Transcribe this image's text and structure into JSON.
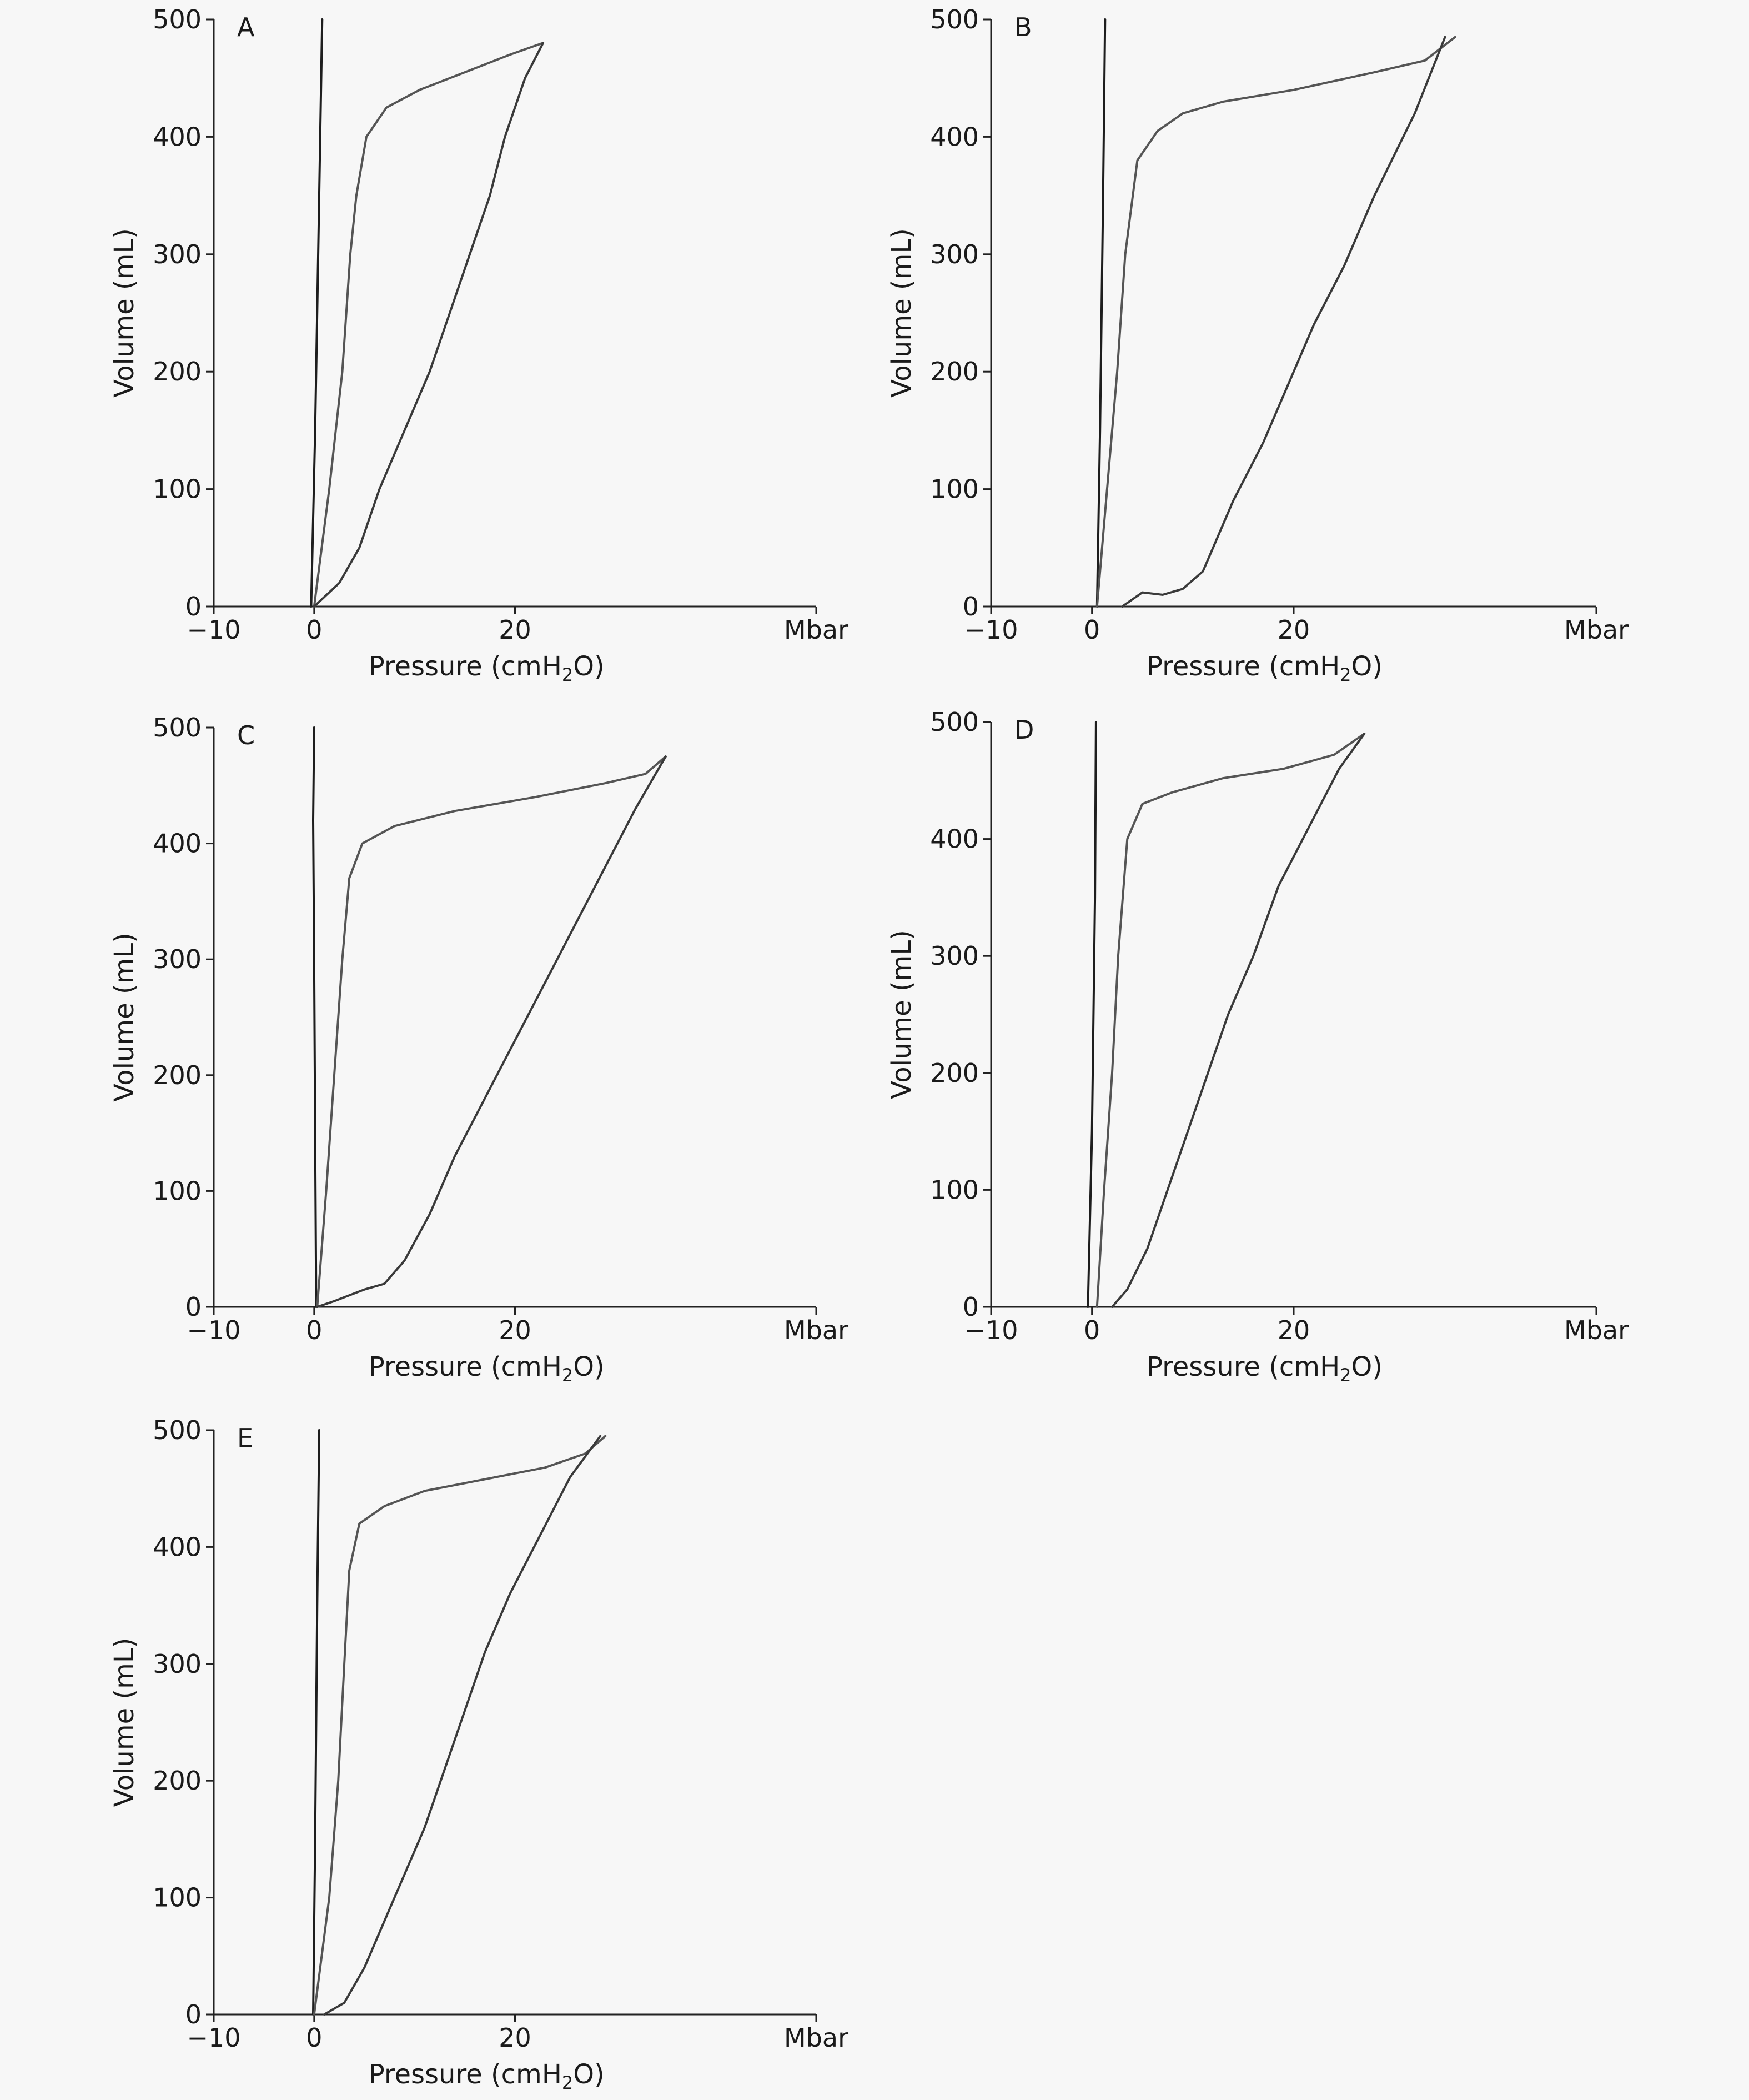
{
  "chart_data": [
    {
      "type": "line",
      "panel_label": "A",
      "xlabel": "Pressure (cmH₂O)",
      "ylabel": "Volume (mL)",
      "x_unit_label": "Mbar",
      "xlim": [
        -10,
        50
      ],
      "ylim": [
        0,
        500
      ],
      "x_ticks": [
        -10,
        0,
        20
      ],
      "y_ticks": [
        0,
        100,
        200,
        300,
        400,
        500
      ],
      "series": [
        {
          "x": [
            -0.3,
            0.1,
            0.5,
            0.8
          ],
          "y": [
            0,
            150,
            350,
            500
          ]
        },
        {
          "x": [
            0,
            1.5,
            2.8,
            3.6,
            4.2,
            5.2,
            7.2,
            10.5,
            15,
            19.5,
            22.8
          ],
          "y": [
            0,
            100,
            200,
            300,
            350,
            400,
            425,
            440,
            455,
            470,
            480
          ]
        },
        {
          "x": [
            22.8,
            21,
            19,
            17.5,
            15.5,
            13.5,
            11.5,
            9,
            6.5,
            4.5,
            2.5,
            0
          ],
          "y": [
            480,
            450,
            400,
            350,
            300,
            250,
            200,
            150,
            100,
            50,
            20,
            0
          ]
        }
      ]
    },
    {
      "type": "line",
      "panel_label": "B",
      "xlabel": "Pressure (cmH₂O)",
      "ylabel": "Volume (mL)",
      "x_unit_label": "Mbar",
      "xlim": [
        -10,
        50
      ],
      "ylim": [
        0,
        500
      ],
      "x_ticks": [
        -10,
        0,
        20
      ],
      "y_ticks": [
        0,
        100,
        200,
        300,
        400,
        500
      ],
      "series": [
        {
          "x": [
            0.5,
            0.8,
            1.1,
            1.3
          ],
          "y": [
            0,
            150,
            350,
            500
          ]
        },
        {
          "x": [
            0.5,
            1.5,
            2.5,
            3.3,
            4.5,
            6.5,
            9,
            13,
            20,
            28,
            33,
            36
          ],
          "y": [
            0,
            100,
            200,
            300,
            380,
            405,
            420,
            430,
            440,
            455,
            465,
            485
          ]
        },
        {
          "x": [
            35,
            32,
            28,
            25,
            22,
            19.5,
            17,
            14,
            11,
            9,
            7,
            5,
            3
          ],
          "y": [
            485,
            420,
            350,
            290,
            240,
            190,
            140,
            90,
            30,
            15,
            10,
            12,
            0
          ]
        }
      ]
    },
    {
      "type": "line",
      "panel_label": "C",
      "xlabel": "Pressure (cmH₂O)",
      "ylabel": "Volume (mL)",
      "x_unit_label": "Mbar",
      "xlim": [
        -10,
        50
      ],
      "ylim": [
        0,
        500
      ],
      "x_ticks": [
        -10,
        0,
        20
      ],
      "y_ticks": [
        0,
        100,
        200,
        300,
        400,
        500
      ],
      "series": [
        {
          "x": [
            0.2,
            0.1,
            0,
            -0.1,
            0
          ],
          "y": [
            0,
            150,
            300,
            420,
            500
          ]
        },
        {
          "x": [
            0.3,
            1.2,
            2,
            2.8,
            3.5,
            4.8,
            8,
            14,
            22,
            29,
            33,
            35
          ],
          "y": [
            0,
            100,
            200,
            300,
            370,
            400,
            415,
            428,
            440,
            452,
            460,
            475
          ]
        },
        {
          "x": [
            35,
            32,
            29,
            26,
            23,
            20,
            17,
            14,
            11.5,
            9,
            7,
            5,
            2,
            0.3
          ],
          "y": [
            475,
            430,
            380,
            330,
            280,
            230,
            180,
            130,
            80,
            40,
            20,
            15,
            5,
            0
          ]
        }
      ]
    },
    {
      "type": "line",
      "panel_label": "D",
      "xlabel": "Pressure (cmH₂O)",
      "ylabel": "Volume (mL)",
      "x_unit_label": "Mbar",
      "xlim": [
        -10,
        50
      ],
      "ylim": [
        0,
        500
      ],
      "x_ticks": [
        -10,
        0,
        20
      ],
      "y_ticks": [
        0,
        100,
        200,
        300,
        400,
        500
      ],
      "series": [
        {
          "x": [
            -0.4,
            0,
            0.3,
            0.4
          ],
          "y": [
            0,
            150,
            350,
            500
          ]
        },
        {
          "x": [
            0.5,
            1.2,
            2,
            2.6,
            3.5,
            5,
            8,
            13,
            19,
            24,
            27
          ],
          "y": [
            0,
            100,
            200,
            300,
            400,
            430,
            440,
            452,
            460,
            472,
            490
          ]
        },
        {
          "x": [
            27,
            24.5,
            21.5,
            18.5,
            16,
            13.5,
            11.5,
            9.5,
            7.5,
            5.5,
            3.5,
            2
          ],
          "y": [
            490,
            460,
            410,
            360,
            300,
            250,
            200,
            150,
            100,
            50,
            15,
            0
          ]
        }
      ]
    },
    {
      "type": "line",
      "panel_label": "E",
      "xlabel": "Pressure (cmH₂O)",
      "ylabel": "Volume (mL)",
      "x_unit_label": "Mbar",
      "xlim": [
        -10,
        50
      ],
      "ylim": [
        0,
        500
      ],
      "x_ticks": [
        -10,
        0,
        20
      ],
      "y_ticks": [
        0,
        100,
        200,
        300,
        400,
        500
      ],
      "series": [
        {
          "x": [
            -0.1,
            0.1,
            0.3,
            0.5
          ],
          "y": [
            0,
            150,
            350,
            500
          ]
        },
        {
          "x": [
            0,
            1.5,
            2.4,
            3,
            3.5,
            4.5,
            7,
            11,
            17,
            23,
            27,
            29
          ],
          "y": [
            0,
            100,
            200,
            300,
            380,
            420,
            435,
            448,
            458,
            468,
            480,
            495
          ]
        },
        {
          "x": [
            28.5,
            25.5,
            22.5,
            19.5,
            17,
            15,
            13,
            11,
            9,
            7,
            5,
            3,
            1
          ],
          "y": [
            495,
            460,
            410,
            360,
            310,
            260,
            210,
            160,
            120,
            80,
            40,
            10,
            0
          ]
        }
      ]
    }
  ]
}
